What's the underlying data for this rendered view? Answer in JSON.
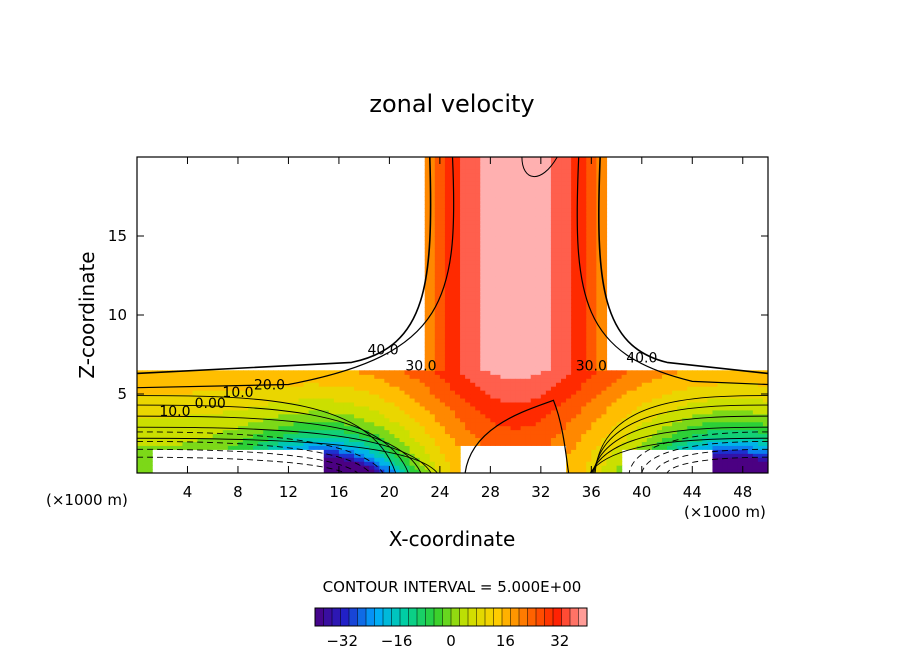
{
  "chart_data": {
    "type": "contour",
    "title": "zonal velocity",
    "xlabel": "X-coordinate",
    "ylabel": "Z-coordinate",
    "x_unit": "(×1000 m)",
    "z_unit": "(×1000 m)",
    "xlim": [
      0,
      50
    ],
    "ylim": [
      0,
      20
    ],
    "x_ticks": [
      4,
      8,
      12,
      16,
      20,
      24,
      28,
      32,
      36,
      40,
      44,
      48
    ],
    "y_ticks": [
      5,
      10,
      15
    ],
    "contour_interval_label": "CONTOUR INTERVAL = 5.000E+00",
    "contour_interval": 5.0,
    "contour_labels": [
      {
        "text": "40.0",
        "x": 19.5,
        "z": 7.5
      },
      {
        "text": "30.0",
        "x": 22.5,
        "z": 6.5
      },
      {
        "text": "30.0",
        "x": 36.0,
        "z": 6.5
      },
      {
        "text": "40.0",
        "x": 40.0,
        "z": 7.0
      },
      {
        "text": "20.0",
        "x": 10.5,
        "z": 5.3
      },
      {
        "text": "10.0",
        "x": 8.0,
        "z": 4.8
      },
      {
        "text": "0.00",
        "x": 5.8,
        "z": 4.1
      },
      {
        "text": "10.0",
        "x": 3.0,
        "z": 3.6
      }
    ],
    "colorbar": {
      "range": [
        -40,
        40
      ],
      "ticks": [
        -32,
        -16,
        0,
        16,
        32
      ],
      "colormap": [
        "#4b0082",
        "#2020c8",
        "#00aaff",
        "#00d0a0",
        "#30d030",
        "#c8e000",
        "#ffd000",
        "#ff7000",
        "#ff2000",
        "#ffb0b0"
      ]
    },
    "fields": {
      "jet_core_x_range": [
        23,
        37
      ],
      "undefined_region_above": "z > 6.5 outside jet",
      "min_value_region": "lower left and lower right near surface",
      "max_value": 40
    }
  }
}
